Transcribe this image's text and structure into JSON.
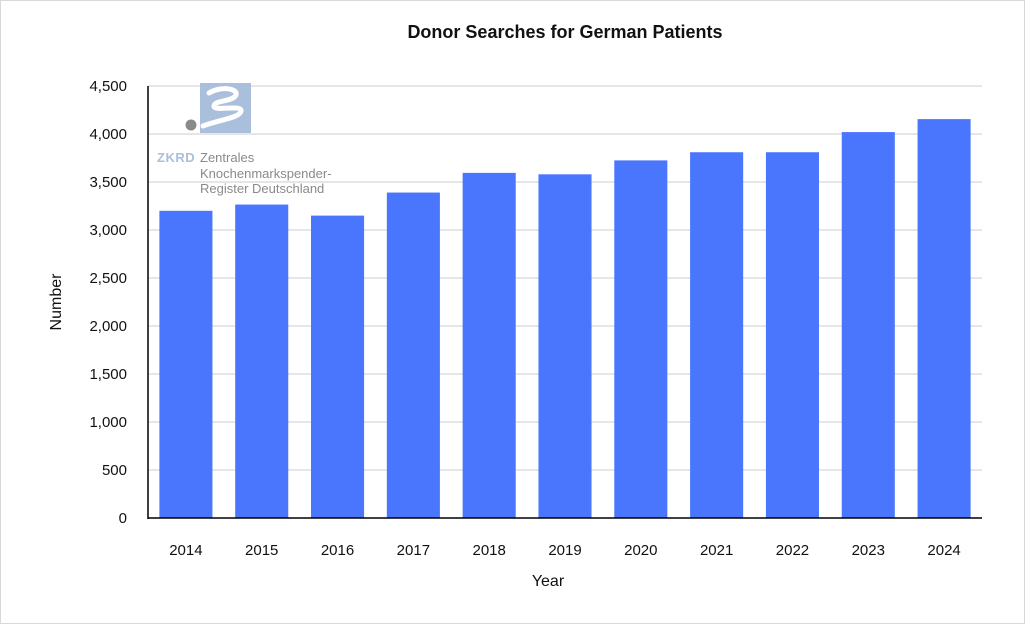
{
  "colors": {
    "bar": "#4a76fe",
    "gridline": "#cccccc",
    "axis": "#000000",
    "logo_block": "#a9bfdc",
    "logo_dot": "#8a8a8a"
  },
  "logo": {
    "icon": "zkrd-wave-logo",
    "abbr": "ZKRD",
    "line1": "Zentrales",
    "line2": "Knochenmarkspender-",
    "line3": "Register Deutschland"
  },
  "chart_data": {
    "type": "bar",
    "title": "Donor Searches for German Patients",
    "xlabel": "Year",
    "ylabel": "Number",
    "categories": [
      "2014",
      "2015",
      "2016",
      "2017",
      "2018",
      "2019",
      "2020",
      "2021",
      "2022",
      "2023",
      "2024"
    ],
    "values": [
      3200,
      3265,
      3150,
      3390,
      3595,
      3580,
      3725,
      3810,
      3810,
      4020,
      4155
    ],
    "ylim": [
      0,
      4500
    ],
    "yticks": [
      0,
      500,
      1000,
      1500,
      2000,
      2500,
      3000,
      3500,
      4000,
      4500
    ],
    "ytick_labels": [
      "0",
      "500",
      "1,000",
      "1,500",
      "2,000",
      "2,500",
      "3,000",
      "3,500",
      "4,000",
      "4,500"
    ],
    "grid": true,
    "legend": "none"
  }
}
